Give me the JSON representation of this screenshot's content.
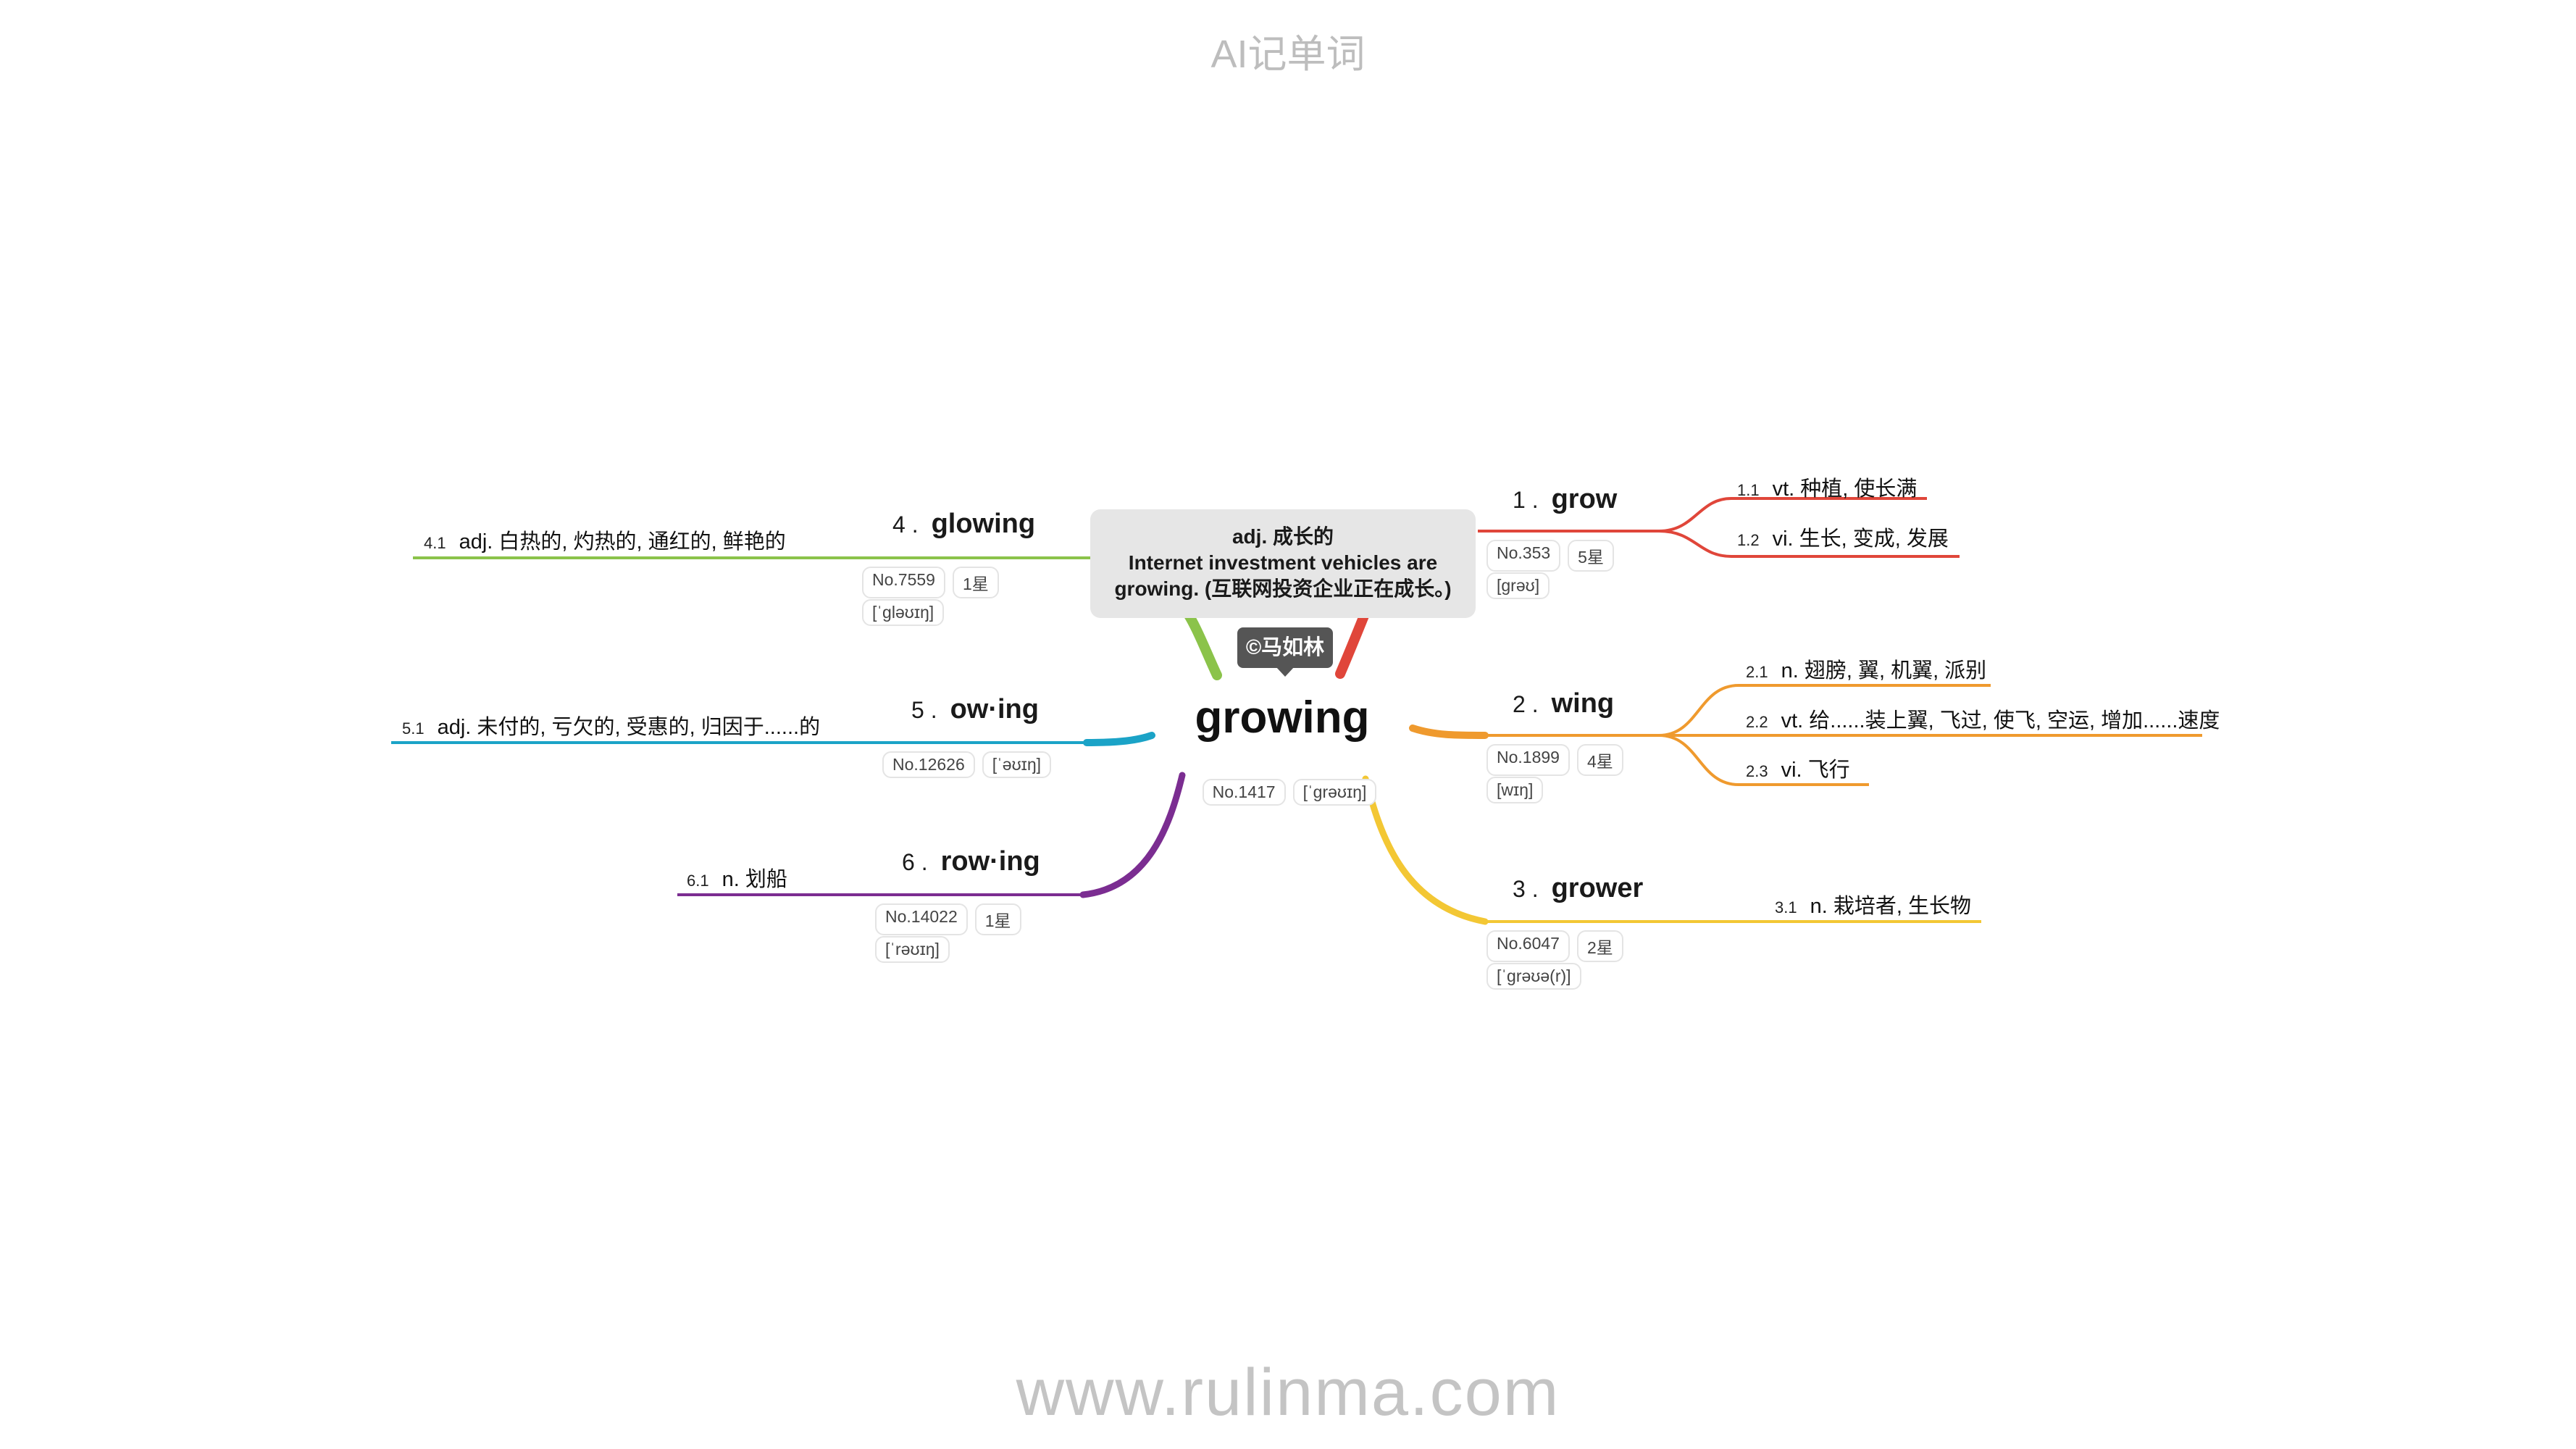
{
  "header": "AI记单词",
  "footer": "www.rulinma.com",
  "center": {
    "word": "growing",
    "number": "No.1417",
    "phonetic": "[ˈɡrəʊɪŋ]",
    "popup_line1": "adj. 成长的",
    "popup_line2": "Internet investment vehicles are",
    "popup_line3": "growing. (互联网投资企业正在成长。)",
    "author": "©马如林"
  },
  "branches": [
    {
      "num": "1 .",
      "word": "grow",
      "rank": "No.353",
      "stars": "5星",
      "phonetic": "[ɡrəʊ]",
      "color": "#e0463a",
      "defs": [
        {
          "num": "1.1",
          "text": "vt. 种植, 使长满"
        },
        {
          "num": "1.2",
          "text": "vi. 生长, 变成, 发展"
        }
      ]
    },
    {
      "num": "2 .",
      "word": "wing",
      "rank": "No.1899",
      "stars": "4星",
      "phonetic": "[wɪŋ]",
      "color": "#ef9a2e",
      "defs": [
        {
          "num": "2.1",
          "text": "n. 翅膀, 翼, 机翼, 派别"
        },
        {
          "num": "2.2",
          "text": "vt. 给......装上翼, 飞过, 使飞, 空运, 增加......速度"
        },
        {
          "num": "2.3",
          "text": "vi. 飞行"
        }
      ]
    },
    {
      "num": "3 .",
      "word": "grower",
      "rank": "No.6047",
      "stars": "2星",
      "phonetic": "[ˈɡrəʊə(r)]",
      "color": "#f3c734",
      "defs": [
        {
          "num": "3.1",
          "text": "n. 栽培者, 生长物"
        }
      ]
    },
    {
      "num": "4 .",
      "word": "glowing",
      "rank": "No.7559",
      "stars": "1星",
      "phonetic": "[ˈɡləʊɪŋ]",
      "color": "#8bc34a",
      "defs": [
        {
          "num": "4.1",
          "text": "adj. 白热的, 灼热的, 通红的, 鲜艳的"
        }
      ]
    },
    {
      "num": "5 .",
      "word": "ow·ing",
      "rank": "No.12626",
      "stars": "",
      "phonetic": "[ˈəʊɪŋ]",
      "color": "#1ba3c7",
      "defs": [
        {
          "num": "5.1",
          "text": "adj. 未付的, 亏欠的, 受惠的, 归因于......的"
        }
      ]
    },
    {
      "num": "6 .",
      "word": "row·ing",
      "rank": "No.14022",
      "stars": "1星",
      "phonetic": "[ˈrəʊɪŋ]",
      "color": "#7b2d91",
      "defs": [
        {
          "num": "6.1",
          "text": "n. 划船"
        }
      ]
    }
  ]
}
